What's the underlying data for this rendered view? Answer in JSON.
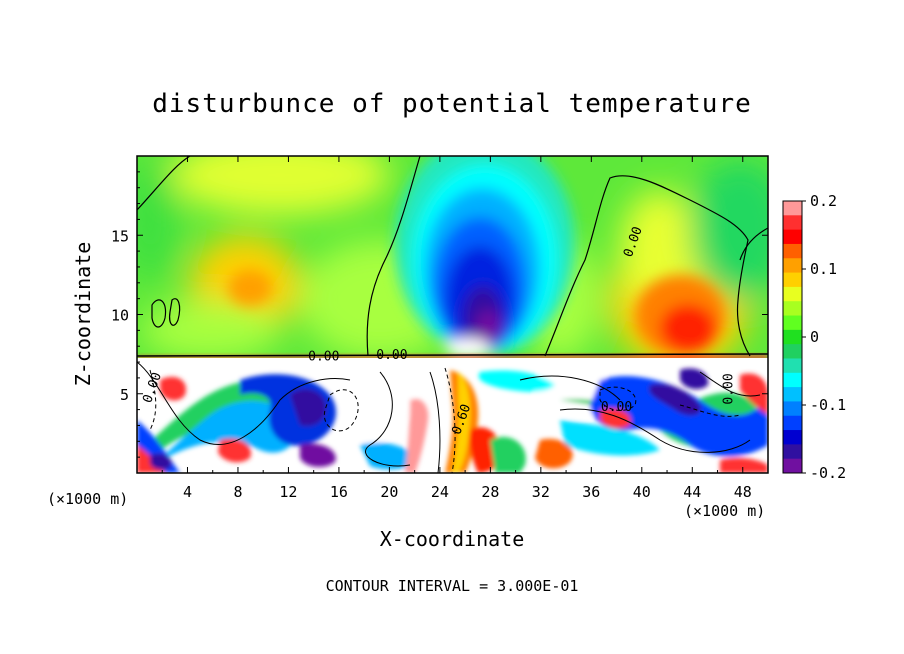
{
  "chart_data": {
    "type": "heatmap",
    "title": "disturbunce of potential temperature",
    "xlabel": "X-coordinate",
    "ylabel": "Z-coordinate",
    "x_unit": "(×1000 m)",
    "y_unit": "(×1000 m)",
    "xlim": [
      0,
      50
    ],
    "ylim": [
      0,
      20
    ],
    "x_ticks": [
      "4",
      "8",
      "12",
      "16",
      "20",
      "24",
      "28",
      "32",
      "36",
      "40",
      "44",
      "48"
    ],
    "x_tick_values": [
      4,
      8,
      12,
      16,
      20,
      24,
      28,
      32,
      36,
      40,
      44,
      48
    ],
    "y_ticks": [
      "5",
      "10",
      "15"
    ],
    "y_tick_values": [
      5,
      10,
      15
    ],
    "colorbar": {
      "range": [
        -0.2,
        0.2
      ],
      "tick_labels": [
        "0.2",
        "0.1",
        "0",
        "-0.1",
        "-0.2"
      ],
      "tick_values": [
        0.2,
        0.1,
        0,
        -0.1,
        -0.2
      ],
      "colors": [
        "#ff9999",
        "#ff3030",
        "#ff0000",
        "#ff6000",
        "#ffa000",
        "#ffd000",
        "#e8ff20",
        "#a8ff20",
        "#60ff20",
        "#20e020",
        "#20d060",
        "#20e0b0",
        "#00ffff",
        "#00c0ff",
        "#0080ff",
        "#0040ff",
        "#0000d0",
        "#3010a0",
        "#7010a0"
      ]
    },
    "contour_labels": [
      {
        "text": "0.00",
        "x": 39.6,
        "z": 14.5,
        "rotate": -70
      },
      {
        "text": "0.00",
        "x": 14.8,
        "z": 7.1,
        "rotate": 0
      },
      {
        "text": "0.00",
        "x": 20.2,
        "z": 7.2,
        "rotate": 0
      },
      {
        "text": "0.00",
        "x": 38.0,
        "z": 3.9,
        "rotate": 0
      },
      {
        "text": "0.60",
        "x": 26.0,
        "z": 3.3,
        "rotate": -70
      },
      {
        "text": "0.00",
        "x": 47.2,
        "z": 5.3,
        "rotate": -90
      },
      {
        "text": "0.00",
        "x": 1.5,
        "z": 5.3,
        "rotate": -70
      }
    ],
    "contour_interval_label": "CONTOUR INTERVAL = 3.000E-01",
    "grid": false,
    "legend_position": "right"
  }
}
